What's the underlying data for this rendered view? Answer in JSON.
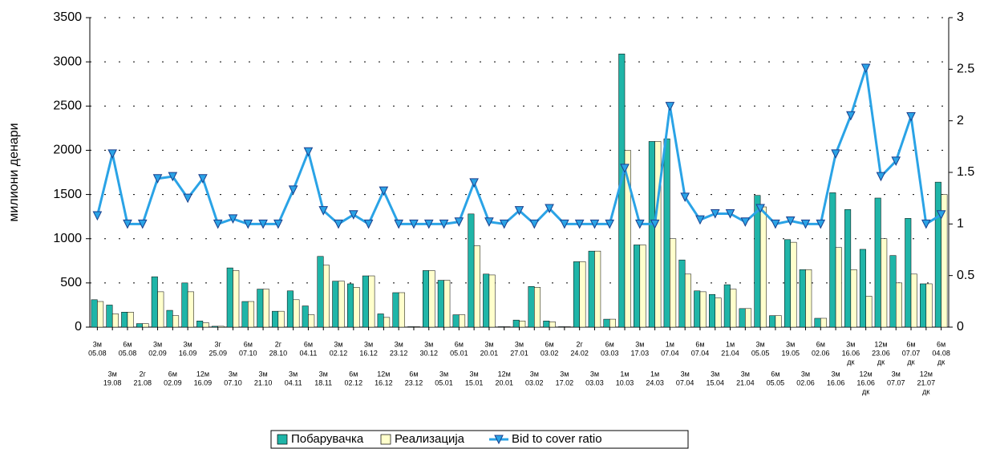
{
  "chart_data": {
    "type": "bar_line",
    "y_label": "милиони денари",
    "categories": [
      [
        "3м",
        "05.08"
      ],
      [
        "3м",
        "19.08"
      ],
      [
        "6м",
        "05.08"
      ],
      [
        "2г",
        "21.08"
      ],
      [
        "3м",
        "02.09"
      ],
      [
        "6м",
        "02.09"
      ],
      [
        "3м",
        "16.09"
      ],
      [
        "12м",
        "16.09"
      ],
      [
        "3г",
        "25.09"
      ],
      [
        "3м",
        "07.10"
      ],
      [
        "6м",
        "07.10"
      ],
      [
        "3м",
        "21.10"
      ],
      [
        "2г",
        "28.10"
      ],
      [
        "3м",
        "04.11"
      ],
      [
        "6м",
        "04.11"
      ],
      [
        "3м",
        "18.11"
      ],
      [
        "3м",
        "02.12"
      ],
      [
        "6м",
        "02.12"
      ],
      [
        "3м",
        "16.12"
      ],
      [
        "12м",
        "16.12"
      ],
      [
        "3м",
        "23.12"
      ],
      [
        "6м",
        "23.12"
      ],
      [
        "3м",
        "30.12"
      ],
      [
        "3м",
        "05.01"
      ],
      [
        "6м",
        "05.01"
      ],
      [
        "3м",
        "15.01"
      ],
      [
        "3м",
        "20.01"
      ],
      [
        "12м",
        "20.01"
      ],
      [
        "3м",
        "27.01"
      ],
      [
        "3м",
        "03.02"
      ],
      [
        "6м",
        "03.02"
      ],
      [
        "3м",
        "17.02"
      ],
      [
        "2г",
        "24.02"
      ],
      [
        "3м",
        "03.03"
      ],
      [
        "6м",
        "03.03"
      ],
      [
        "1м",
        "10.03"
      ],
      [
        "3м",
        "17.03"
      ],
      [
        "1м",
        "24.03"
      ],
      [
        "1м",
        "07.04"
      ],
      [
        "3м",
        "07.04"
      ],
      [
        "6м",
        "07.04"
      ],
      [
        "3м",
        "15.04"
      ],
      [
        "1м",
        "21.04"
      ],
      [
        "3м",
        "21.04"
      ],
      [
        "3м",
        "05.05"
      ],
      [
        "6м",
        "05.05"
      ],
      [
        "3м",
        "19.05"
      ],
      [
        "3м",
        "02.06"
      ],
      [
        "6м",
        "02.06"
      ],
      [
        "3м",
        "16.06"
      ],
      [
        "3м",
        "16.06",
        "дк"
      ],
      [
        "12м",
        "16.06",
        "дк"
      ],
      [
        "12м",
        "23.06",
        "дк"
      ],
      [
        "3м",
        "07.07"
      ],
      [
        "6м",
        "07.07",
        "дк"
      ],
      [
        "12м",
        "21.07",
        "дк"
      ],
      [
        "6м",
        "04.08",
        "дк"
      ]
    ],
    "series": [
      {
        "name": "Побарувачка",
        "color": "#1fb5a8",
        "values": [
          310,
          250,
          170,
          40,
          570,
          190,
          500,
          70,
          10,
          670,
          290,
          430,
          180,
          410,
          240,
          800,
          520,
          490,
          580,
          150,
          390,
          5,
          640,
          530,
          140,
          1280,
          600,
          5,
          80,
          460,
          70,
          5,
          740,
          860,
          90,
          3090,
          930,
          2100,
          2130,
          760,
          410,
          370,
          480,
          210,
          1490,
          130,
          990,
          650,
          100,
          1520,
          1330,
          880,
          1460,
          810,
          1230,
          490,
          1640
        ]
      },
      {
        "name": "Реализација",
        "color": "#ffffcc",
        "values": [
          290,
          150,
          170,
          40,
          400,
          130,
          400,
          50,
          10,
          640,
          290,
          430,
          180,
          310,
          140,
          700,
          520,
          450,
          580,
          110,
          390,
          5,
          640,
          530,
          140,
          920,
          590,
          5,
          70,
          450,
          60,
          5,
          740,
          860,
          90,
          2000,
          930,
          2100,
          1000,
          600,
          400,
          330,
          430,
          210,
          1360,
          130,
          960,
          650,
          100,
          900,
          650,
          350,
          1000,
          500,
          600,
          490,
          1500
        ]
      },
      {
        "name": "Bid to cover ratio",
        "color": "#2aa3e6",
        "axis": "y2",
        "type": "line",
        "values": [
          1.08,
          1.68,
          1.0,
          1.0,
          1.44,
          1.46,
          1.25,
          1.44,
          1.0,
          1.05,
          1.0,
          1.0,
          1.0,
          1.33,
          1.7,
          1.13,
          1.0,
          1.09,
          1.0,
          1.32,
          1.0,
          1.0,
          1.0,
          1.0,
          1.02,
          1.4,
          1.02,
          1.0,
          1.13,
          1.0,
          1.15,
          1.0,
          1.0,
          1.0,
          1.0,
          1.54,
          1.0,
          1.0,
          2.14,
          1.26,
          1.04,
          1.1,
          1.1,
          1.02,
          1.15,
          1.0,
          1.03,
          1.0,
          1.0,
          1.68,
          2.05,
          2.51,
          1.46,
          1.61,
          2.04,
          1.0,
          1.09
        ]
      }
    ],
    "ylim": [
      0,
      3500
    ],
    "yticks": [
      0,
      500,
      1000,
      1500,
      2000,
      2500,
      3000,
      3500
    ],
    "y2lim": [
      0,
      3
    ],
    "y2ticks": [
      0,
      0.5,
      1,
      1.5,
      2,
      2.5,
      3
    ],
    "grid": true,
    "legend": "bottom"
  }
}
